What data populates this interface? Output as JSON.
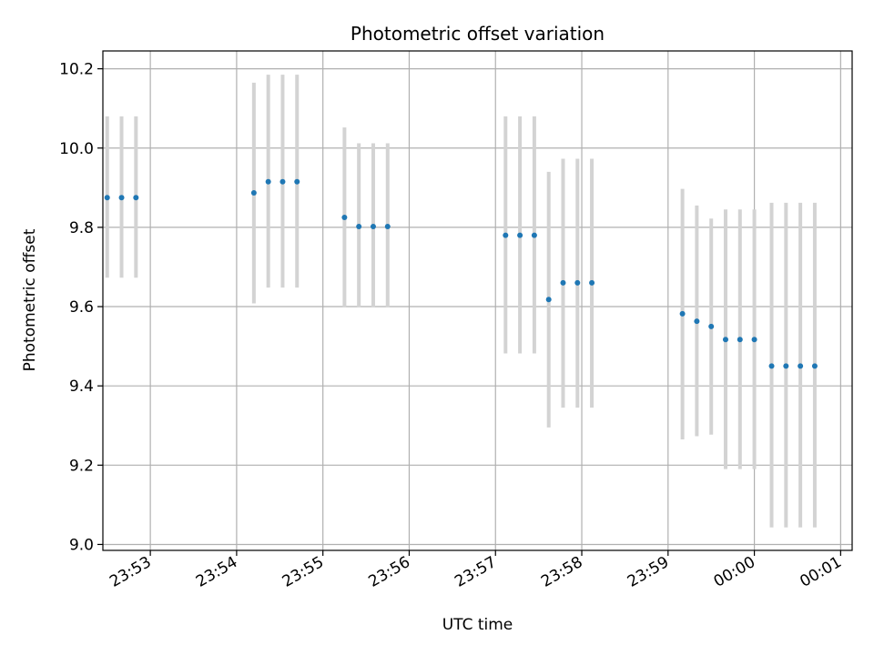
{
  "chart_data": {
    "type": "scatter",
    "title": "Photometric offset variation",
    "xlabel": "UTC time",
    "ylabel": "Photometric offset",
    "grid": true,
    "xlim": [
      "23:52:27",
      "00:01:08"
    ],
    "ylim": [
      8.985,
      10.245
    ],
    "xticks": [
      "23:53",
      "23:54",
      "23:55",
      "23:56",
      "23:57",
      "23:58",
      "23:59",
      "00:00",
      "00:01"
    ],
    "yticks": [
      "9.0",
      "9.2",
      "9.4",
      "9.6",
      "9.8",
      "10.0",
      "10.2"
    ],
    "colors": {
      "points": "#1f77b4",
      "errorbars": "#d3d3d3",
      "grid": "#b0b0b0"
    },
    "series": [
      {
        "x": [
          "23:52:30",
          "23:52:40",
          "23:52:50",
          "23:54:12",
          "23:54:22",
          "23:54:32",
          "23:54:42",
          "23:55:15",
          "23:55:25",
          "23:55:35",
          "23:55:45",
          "23:57:07",
          "23:57:17",
          "23:57:27",
          "23:57:37",
          "23:57:47",
          "23:57:57",
          "23:58:07",
          "23:59:10",
          "23:59:20",
          "23:59:30",
          "23:59:40",
          "23:59:50",
          "00:00:00",
          "00:00:12",
          "00:00:22",
          "00:00:32",
          "00:00:42"
        ],
        "y": [
          9.875,
          9.875,
          9.875,
          9.887,
          9.915,
          9.915,
          9.915,
          9.825,
          9.802,
          9.802,
          9.802,
          9.78,
          9.78,
          9.78,
          9.618,
          9.66,
          9.66,
          9.66,
          9.582,
          9.563,
          9.55,
          9.517,
          9.517,
          9.517,
          9.45,
          9.45,
          9.45,
          9.45
        ],
        "yerr_low": [
          9.673,
          9.673,
          9.673,
          9.608,
          9.648,
          9.648,
          9.648,
          9.598,
          9.598,
          9.598,
          9.598,
          9.482,
          9.482,
          9.482,
          9.295,
          9.345,
          9.345,
          9.345,
          9.265,
          9.273,
          9.277,
          9.19,
          9.19,
          9.19,
          9.043,
          9.043,
          9.043,
          9.043
        ],
        "yerr_high": [
          10.08,
          10.08,
          10.08,
          10.165,
          10.185,
          10.185,
          10.185,
          10.052,
          10.012,
          10.012,
          10.012,
          10.08,
          10.08,
          10.08,
          9.94,
          9.973,
          9.973,
          9.973,
          9.897,
          9.855,
          9.822,
          9.845,
          9.845,
          9.845,
          9.862,
          9.862,
          9.862,
          9.862
        ]
      }
    ]
  }
}
